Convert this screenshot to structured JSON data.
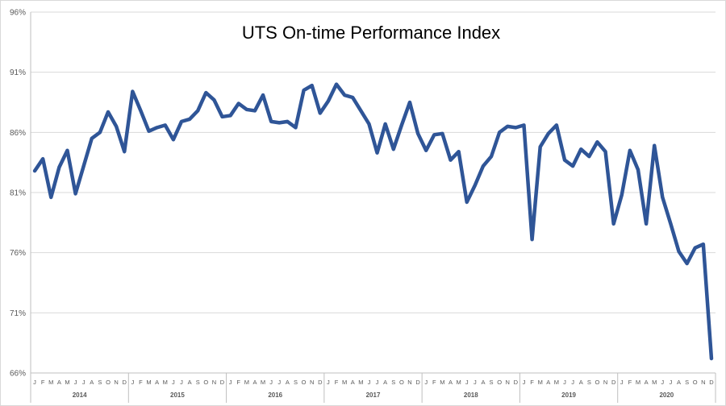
{
  "chart_data": {
    "type": "line",
    "title": "UTS On-time Performance Index",
    "xlabel": "",
    "ylabel": "",
    "ylim": [
      66,
      96
    ],
    "yticks": [
      66,
      71,
      76,
      81,
      86,
      91,
      96
    ],
    "ytick_labels": [
      "66%",
      "71%",
      "76%",
      "81%",
      "86%",
      "91%",
      "96%"
    ],
    "grid": true,
    "legend": "none",
    "line_color": "#2f5597",
    "month_labels": [
      "J",
      "F",
      "M",
      "A",
      "M",
      "J",
      "J",
      "A",
      "S",
      "O",
      "N",
      "D"
    ],
    "years": [
      "2014",
      "2015",
      "2016",
      "2017",
      "2018",
      "2019",
      "2020"
    ],
    "series": [
      {
        "values": [
          82.8,
          83.8,
          80.6,
          83.1,
          84.5,
          80.9,
          83.2,
          85.5,
          86.0,
          87.7,
          86.5,
          84.4,
          89.4,
          87.8,
          86.1,
          86.4,
          86.6,
          85.4,
          86.9,
          87.1,
          87.8,
          89.3,
          88.7,
          87.3,
          87.4,
          88.4,
          87.9,
          87.8,
          89.1,
          86.9,
          86.8,
          86.9,
          86.4,
          89.5,
          89.9,
          87.6,
          88.6,
          90.0,
          89.1,
          88.9,
          87.8,
          86.7,
          84.3,
          86.7,
          84.6,
          86.6,
          88.5,
          85.9,
          84.5,
          85.8,
          85.9,
          83.7,
          84.4,
          80.2,
          81.6,
          83.2,
          84.0,
          86.0,
          86.5,
          86.4,
          86.6,
          77.1,
          84.8,
          85.9,
          86.6,
          83.7,
          83.2,
          84.6,
          84.0,
          85.2,
          84.4,
          78.4,
          80.8,
          84.5,
          82.9,
          78.4,
          84.9,
          80.6,
          78.4,
          76.1,
          75.1,
          76.4,
          76.7,
          67.2
        ]
      }
    ]
  }
}
